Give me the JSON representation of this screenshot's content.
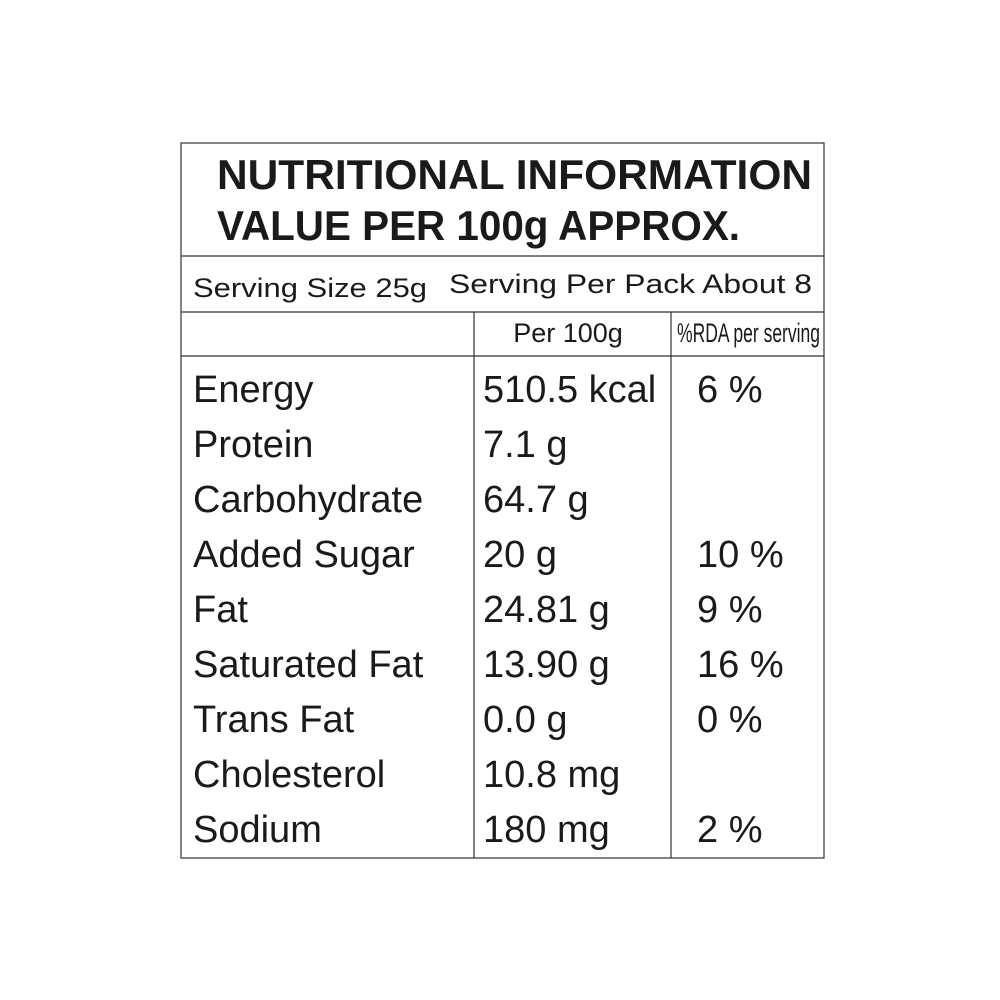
{
  "header": {
    "title": [
      "NUTRITIONAL INFORMATION",
      "VALUE PER 100g APPROX."
    ]
  },
  "serving": {
    "size": "Serving Size 25g",
    "per_pack": "Serving Per Pack About 8"
  },
  "table": {
    "columns": [
      "Per 100g",
      "%RDA per serving"
    ],
    "rows": [
      {
        "name": "Energy",
        "per_100g": "510.5 kcal",
        "rda": "6 %"
      },
      {
        "name": "Protein",
        "per_100g": "7.1 g"
      },
      {
        "name": "Carbohydrate",
        "per_100g": "64.7 g"
      },
      {
        "name": "Added Sugar",
        "per_100g": "20 g",
        "rda": "10 %"
      },
      {
        "name": "Fat",
        "per_100g": "24.81 g",
        "rda": "9 %"
      },
      {
        "name": "Saturated Fat",
        "per_100g": "13.90 g",
        "rda": "16 %"
      },
      {
        "name": "Trans Fat",
        "per_100g": "0.0 g",
        "rda": "0 %"
      },
      {
        "name": "Cholesterol",
        "per_100g": "10.8 mg"
      },
      {
        "name": "Sodium",
        "per_100g": "180 mg",
        "rda": "2 %"
      }
    ]
  }
}
